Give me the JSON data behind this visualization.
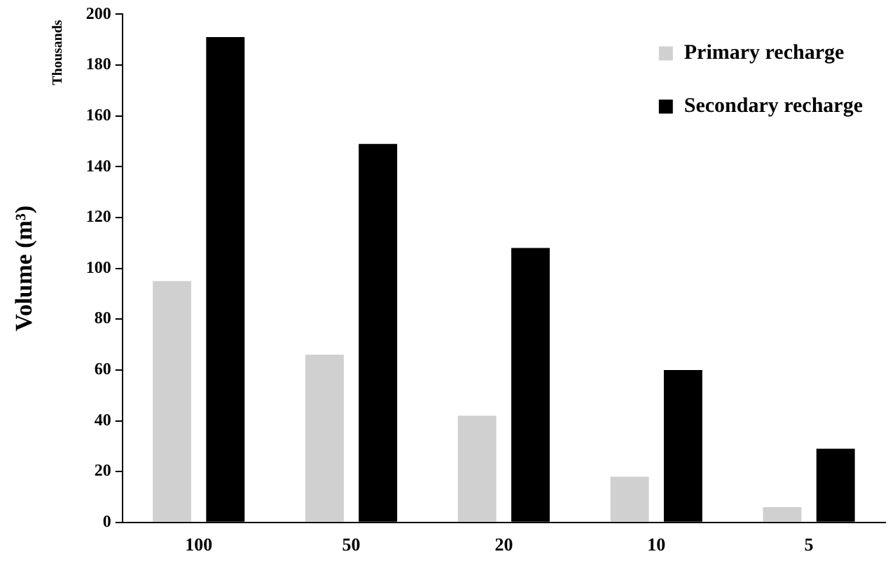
{
  "chart_data": {
    "type": "bar",
    "ylabel": "Volume (m³)",
    "annotations": [
      "Thousands"
    ],
    "categories": [
      "100",
      "50",
      "20",
      "10",
      "5"
    ],
    "series": [
      {
        "name": "Primary recharge",
        "color": "#d0d0d0",
        "values": [
          95,
          66,
          42,
          18,
          6
        ]
      },
      {
        "name": "Secondary recharge",
        "color": "#000000",
        "values": [
          191,
          149,
          108,
          60,
          29
        ]
      }
    ],
    "ylim": [
      0,
      200
    ],
    "yticks": [
      0,
      20,
      40,
      60,
      80,
      100,
      120,
      140,
      160,
      180,
      200
    ],
    "grid": false,
    "legend": "top right"
  }
}
